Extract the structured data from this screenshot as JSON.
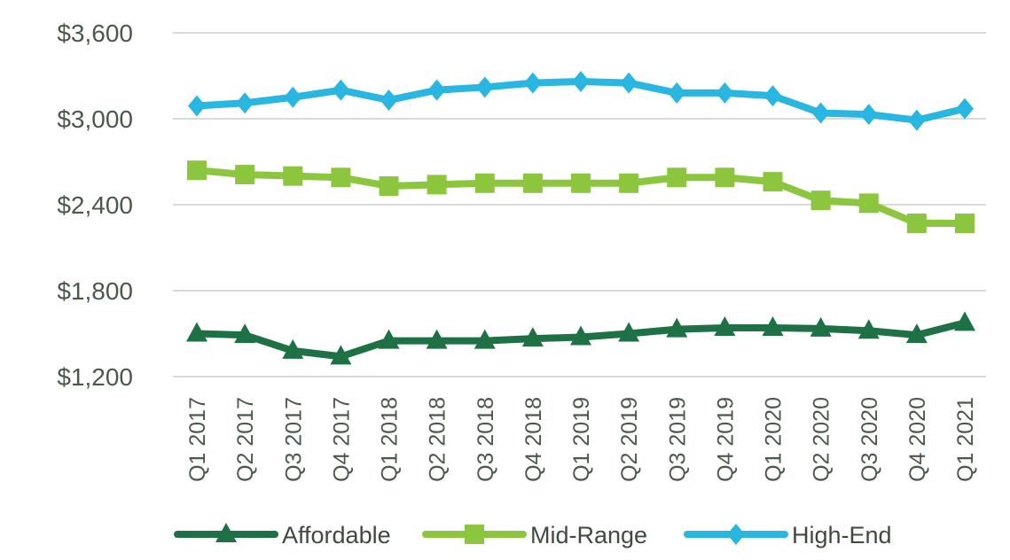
{
  "chart_data": {
    "type": "line",
    "title": "",
    "xlabel": "",
    "ylabel": "",
    "categories": [
      "Q1 2017",
      "Q2 2017",
      "Q3 2017",
      "Q4 2017",
      "Q1 2018",
      "Q2 2018",
      "Q3 2018",
      "Q4 2018",
      "Q1 2019",
      "Q2 2019",
      "Q3 2019",
      "Q4 2019",
      "Q1 2020",
      "Q2 2020",
      "Q3 2020",
      "Q4 2020",
      "Q1 2021"
    ],
    "ylim": [
      1200,
      3600
    ],
    "yticks": [
      1200,
      1800,
      2400,
      3000,
      3600
    ],
    "ytick_labels": [
      "$1,200",
      "$1,800",
      "$2,400",
      "$3,000",
      "$3,600"
    ],
    "grid": "horizontal",
    "legend_position": "bottom",
    "series": [
      {
        "name": "Affordable",
        "color": "#1e7145",
        "marker": "triangle",
        "values": [
          1500,
          1490,
          1380,
          1340,
          1450,
          1450,
          1450,
          1465,
          1475,
          1500,
          1530,
          1540,
          1540,
          1535,
          1520,
          1490,
          1575
        ]
      },
      {
        "name": "Mid-Range",
        "color": "#8cc63f",
        "marker": "square",
        "values": [
          2640,
          2610,
          2600,
          2590,
          2530,
          2540,
          2550,
          2550,
          2550,
          2550,
          2590,
          2590,
          2560,
          2430,
          2410,
          2270,
          2270
        ]
      },
      {
        "name": "High-End",
        "color": "#29b6e0",
        "marker": "diamond",
        "values": [
          3090,
          3110,
          3150,
          3200,
          3130,
          3200,
          3220,
          3250,
          3260,
          3250,
          3180,
          3180,
          3160,
          3040,
          3030,
          2990,
          3070
        ]
      }
    ]
  }
}
